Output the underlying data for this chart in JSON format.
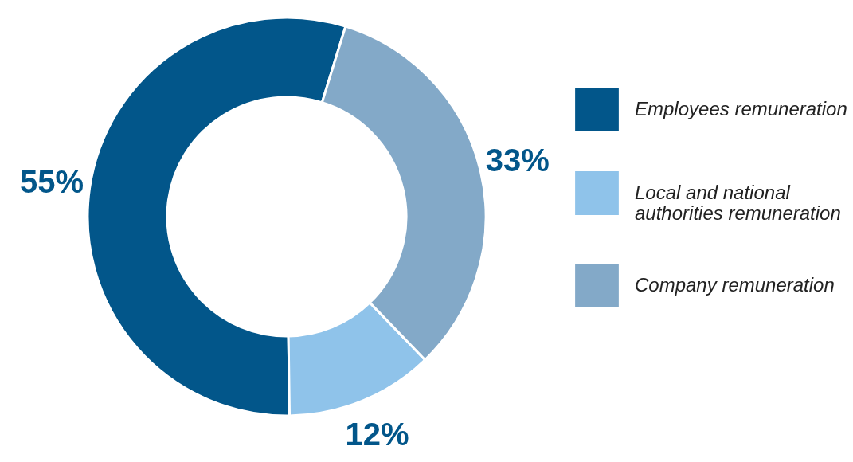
{
  "chart_data": {
    "type": "donut",
    "categories": [
      "Employees remuneration",
      "Local and national authorities remuneration",
      "Company remuneration"
    ],
    "values": [
      55,
      12,
      33
    ],
    "value_labels": [
      "55%",
      "12%",
      "33%"
    ],
    "colors": [
      "#02568a",
      "#8fc3ea",
      "#83a9c8"
    ],
    "legend": "right"
  }
}
